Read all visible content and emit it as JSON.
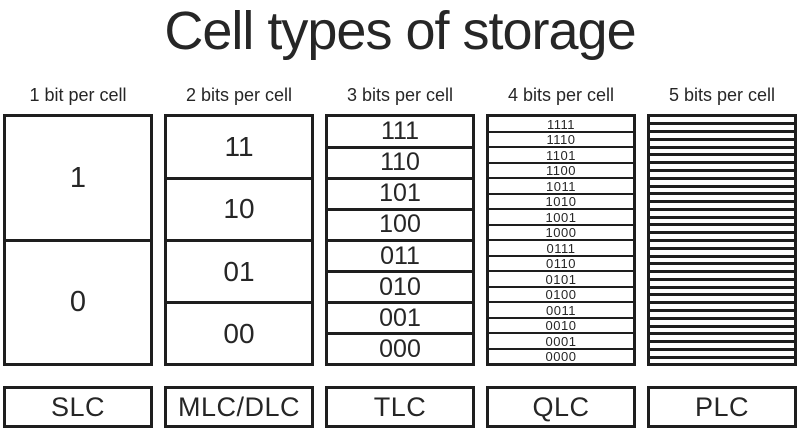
{
  "title": "Cell types of storage",
  "colors": {
    "ink": "#262626",
    "line": "#1e1e1e",
    "background": "#ffffff"
  },
  "columns": [
    {
      "header": "1 bit per cell",
      "label": "SLC",
      "bits": 1,
      "cell_count": 2,
      "cells": [
        "1",
        "0"
      ]
    },
    {
      "header": "2 bits per cell",
      "label": "MLC/DLC",
      "bits": 2,
      "cell_count": 4,
      "cells": [
        "11",
        "10",
        "01",
        "00"
      ]
    },
    {
      "header": "3 bits per cell",
      "label": "TLC",
      "bits": 3,
      "cell_count": 8,
      "cells": [
        "111",
        "110",
        "101",
        "100",
        "011",
        "010",
        "001",
        "000"
      ]
    },
    {
      "header": "4 bits per cell",
      "label": "QLC",
      "bits": 4,
      "cell_count": 16,
      "cells": [
        "1111",
        "1110",
        "1101",
        "1100",
        "1011",
        "1010",
        "1001",
        "1000",
        "0111",
        "0110",
        "0101",
        "0100",
        "0011",
        "0010",
        "0001",
        "0000"
      ]
    },
    {
      "header": "5 bits per cell",
      "label": "PLC",
      "bits": 5,
      "cell_count": 32,
      "cells": []
    }
  ]
}
